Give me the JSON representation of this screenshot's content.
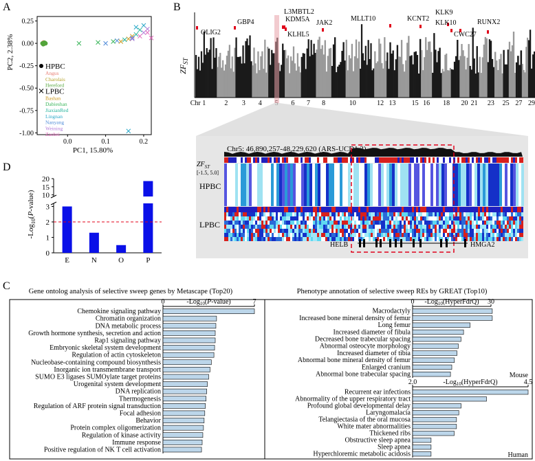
{
  "panel_labels": {
    "A": "A",
    "B": "B",
    "C": "C",
    "D": "D"
  },
  "colors": {
    "manhattan_dark": "#1a1a1a",
    "manhattan_light": "#999999",
    "highlight": "#e0001a",
    "bar_blue": "#0a10e8",
    "hbar_fill": "#bcd6ea",
    "ref_line": "#e0001a"
  },
  "chart_data": [
    {
      "id": "A",
      "type": "scatter",
      "xlabel": "PC1, 15.80%",
      "ylabel": "PC2, 2.38%",
      "xlim": [
        -0.08,
        0.22
      ],
      "ylim": [
        -1.02,
        0.3
      ],
      "x_ticks": [
        "0.0",
        "0.1",
        "0.2"
      ],
      "y_ticks": [
        "0.25",
        "0.00",
        "-0.25",
        "-0.50",
        "-0.75",
        "-1.00"
      ],
      "legend": [
        {
          "name": "HPBC",
          "marker": "dot",
          "color": "#000000",
          "bold": true
        },
        {
          "name": "Angus",
          "color": "#e87d72"
        },
        {
          "name": "Charolais",
          "color": "#b5a22a"
        },
        {
          "name": "Hereford",
          "color": "#53a43a"
        },
        {
          "name": "LPBC",
          "marker": "cross",
          "color": "#000000",
          "bold": true
        },
        {
          "name": "Bashan",
          "color": "#c9961a"
        },
        {
          "name": "Dabieshan",
          "color": "#3ab55a"
        },
        {
          "name": "JiaxianRed",
          "color": "#22b39a"
        },
        {
          "name": "Lingnan",
          "color": "#2aa8c8"
        },
        {
          "name": "Nanyang",
          "color": "#4f8bd8"
        },
        {
          "name": "Weining",
          "color": "#b07ad8"
        },
        {
          "name": "Zaobei",
          "color": "#e060b8"
        }
      ],
      "series": [
        {
          "name": "Angus",
          "marker": "dot",
          "color": "#e87d72",
          "points": [
            [
              -0.065,
              0.0
            ],
            [
              -0.063,
              0.01
            ]
          ]
        },
        {
          "name": "Charolais",
          "marker": "dot",
          "color": "#b5a22a",
          "points": [
            [
              -0.062,
              -0.005
            ],
            [
              -0.06,
              0.005
            ]
          ]
        },
        {
          "name": "Hereford",
          "marker": "dot",
          "color": "#53a43a",
          "points": [
            [
              -0.066,
              0.0
            ],
            [
              -0.064,
              -0.01
            ],
            [
              -0.061,
              0.008
            ],
            [
              -0.058,
              0.0
            ]
          ]
        },
        {
          "name": "Bashan",
          "marker": "cross",
          "color": "#c9961a",
          "points": [
            [
              0.14,
              0.02
            ],
            [
              0.16,
              0.05
            ],
            [
              0.17,
              0.08
            ]
          ]
        },
        {
          "name": "Dabieshan",
          "marker": "cross",
          "color": "#3ab55a",
          "points": [
            [
              0.03,
              0.0
            ],
            [
              0.08,
              0.01
            ],
            [
              0.12,
              0.02
            ]
          ]
        },
        {
          "name": "JiaxianRed",
          "marker": "cross",
          "color": "#22b39a",
          "points": [
            [
              0.15,
              0.04
            ],
            [
              0.18,
              0.1
            ],
            [
              0.19,
              0.15
            ]
          ]
        },
        {
          "name": "Lingnan",
          "marker": "cross",
          "color": "#2aa8c8",
          "points": [
            [
              0.16,
              -0.98
            ],
            [
              0.18,
              0.18
            ],
            [
              0.2,
              0.2
            ]
          ]
        },
        {
          "name": "Nanyang",
          "marker": "cross",
          "color": "#4f8bd8",
          "points": [
            [
              0.1,
              0.0
            ],
            [
              0.13,
              0.03
            ],
            [
              0.17,
              0.06
            ]
          ]
        },
        {
          "name": "Weining",
          "marker": "cross",
          "color": "#b07ad8",
          "points": [
            [
              0.17,
              0.05
            ],
            [
              0.2,
              0.12
            ],
            [
              0.21,
              0.16
            ]
          ]
        },
        {
          "name": "Zaobei",
          "marker": "cross",
          "color": "#e060b8",
          "points": [
            [
              0.19,
              0.08
            ],
            [
              0.21,
              0.12
            ],
            [
              0.22,
              0.06
            ]
          ]
        }
      ]
    },
    {
      "id": "B",
      "type": "scatter",
      "subtype": "manhattan",
      "ylabel": "ZF_ST",
      "ylim": [
        -1.5,
        5.0
      ],
      "chromosomes": [
        "1",
        "2",
        "3",
        "4",
        "5",
        "6",
        "7",
        "8",
        "9",
        "10",
        "11",
        "12",
        "13",
        "14",
        "15",
        "16",
        "17",
        "18",
        "19",
        "20",
        "21",
        "22",
        "23",
        "24",
        "25",
        "26",
        "27",
        "28",
        "29"
      ],
      "x_label_prefix": "Chr",
      "x_tick_labels": [
        "Chr 1",
        "2",
        "3",
        "4",
        "5",
        "6",
        "7",
        "8",
        "10",
        "12",
        "13",
        "15",
        "16",
        "18",
        "20",
        "21",
        "23",
        "25",
        "27",
        "29"
      ],
      "highlighted_chromosome": "5",
      "gene_labels": [
        "OLIG2",
        "GBP4",
        "L3MBTL2",
        "KDM5A",
        "KLHL5",
        "JAK2",
        "MLLT10",
        "KCNT2",
        "KLK9",
        "KLK10",
        "CWC27",
        "RUNX2"
      ]
    },
    {
      "id": "B_zoom",
      "type": "heatmap",
      "title": "Chr5: 46,890,257-48,229,620 (ARS-UCD1.2)",
      "track_label": "ZF_ST",
      "track_range": "[-1.5, 5.0]",
      "row_groups": [
        "HPBC",
        "LPBC"
      ],
      "genes": [
        "HELB",
        "HMGA2"
      ]
    },
    {
      "id": "D",
      "type": "bar",
      "categories": [
        "E",
        "N",
        "O",
        "P"
      ],
      "values": [
        3.0,
        1.3,
        0.5,
        18.5
      ],
      "ylabel": "-Log10(P-value)",
      "y_ticks_lower": [
        "0",
        "1",
        "2",
        "3"
      ],
      "y_ticks_upper": [
        "10",
        "15",
        "20"
      ],
      "axis_break": [
        3.2,
        9.0
      ],
      "reference_line": 2
    },
    {
      "id": "C_left",
      "type": "bar",
      "orientation": "horizontal",
      "title": "Gene ontolog analysis of  selective sweep genes by Metascape (Top20)",
      "xlabel": "-Log10(P-value)",
      "xlim": [
        0,
        7
      ],
      "x_ticks": [
        "0",
        "7"
      ],
      "categories": [
        "Chemokine signaling pathway",
        "Chromatin organization",
        "DNA metabolic process",
        "Growth hormone synthesis, secretion and action",
        "Rap1 signaling pathway",
        "Embryonic skeletal system development",
        "Regulation of actin cytoskeleton",
        "Nucleobase-containing compound biosynthesis",
        "Inorganic ion transmembrane transport",
        "SUMO E3 ligases SUMOylate target proteins",
        "Urogenital system development",
        "DNA replication",
        "Thermogenesis",
        "Regulation of ARF protein signal transduction",
        "Focal adhesion",
        "Behavior",
        "Protein complex oligomerization",
        "Regulation of kinase activity",
        "Immune response",
        "Positive regulation of NK T cell activation"
      ],
      "values": [
        7.0,
        4.1,
        4.05,
        4.0,
        4.0,
        3.95,
        3.9,
        3.7,
        3.6,
        3.5,
        3.4,
        3.35,
        3.3,
        3.25,
        3.2,
        3.15,
        3.1,
        3.05,
        3.0,
        2.95
      ]
    },
    {
      "id": "C_right_mouse",
      "type": "bar",
      "orientation": "horizontal",
      "title": "Phenotype annotation of selective sweep REs by GREAT (Top10)",
      "xlabel": "-Log10(HyperFdrQ)",
      "xlim": [
        0,
        30
      ],
      "x_ticks": [
        "0",
        "30"
      ],
      "species": "Mouse",
      "categories": [
        "Macrodactyly",
        "Increased bone mineral density of femur",
        "Long femur",
        "Increased diameter of fibula",
        "Decreased bone trabecular spacing",
        "Abnormal osteocyte morphology",
        "Increased diameter of tibia",
        "Abnormal bone mineral density of femur",
        "Enlarged cranium",
        "Abnormal bone trabecular spacing"
      ],
      "values": [
        30.5,
        30.5,
        22.0,
        19.5,
        18.5,
        17.5,
        17.0,
        16.0,
        15.0,
        14.5
      ]
    },
    {
      "id": "C_right_human",
      "type": "bar",
      "orientation": "horizontal",
      "xlabel": "-Log10(HyperFdrQ)",
      "xlim": [
        2.0,
        4.5
      ],
      "x_ticks": [
        "2.0",
        "4.5"
      ],
      "species": "Human",
      "categories": [
        "Recurrent ear infections",
        "Abnormality of the upper respiratory tract",
        "Profound global developmental delay",
        "Laryngomalacia",
        "Telangiectasia of the oral mucosa",
        "White mater abnormalities",
        "Thickened ribs",
        "Obstructive sleep apnea",
        "Sleep apnea",
        "Hyperchloremic metabolic acidosis"
      ],
      "values": [
        4.5,
        3.6,
        3.05,
        3.0,
        2.95,
        2.95,
        2.9,
        2.4,
        2.4,
        2.4
      ]
    }
  ]
}
